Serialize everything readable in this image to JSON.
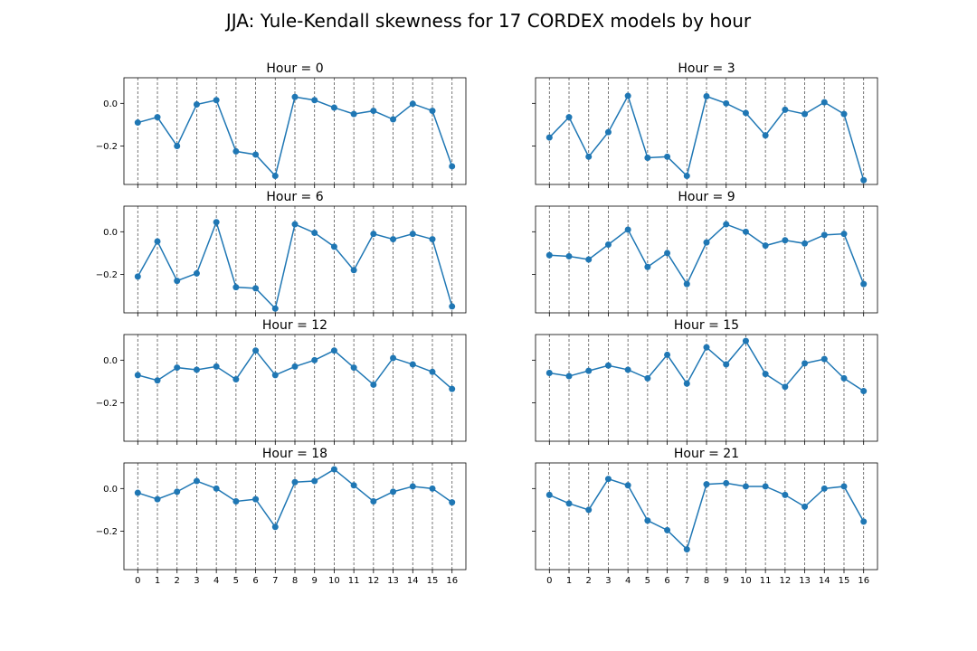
{
  "chart_data": {
    "type": "line",
    "title": "JJA: Yule-Kendall skewness for 17 CORDEX models by hour",
    "x": [
      0,
      1,
      2,
      3,
      4,
      5,
      6,
      7,
      8,
      9,
      10,
      11,
      12,
      13,
      14,
      15,
      16
    ],
    "x_ticks": [
      "0",
      "1",
      "2",
      "3",
      "4",
      "5",
      "6",
      "7",
      "8",
      "9",
      "10",
      "11",
      "12",
      "13",
      "14",
      "15",
      "16"
    ],
    "ylim": [
      -0.38,
      0.12
    ],
    "y_ticks": [
      0.0,
      -0.2
    ],
    "y_tick_labels": [
      "0.0",
      "−0.2"
    ],
    "grid": "vertical dashed lines at each model index",
    "color": "#1f77b4",
    "panels": [
      {
        "title": "Hour = 0",
        "values": [
          -0.09,
          -0.065,
          -0.2,
          -0.005,
          0.015,
          -0.225,
          -0.24,
          -0.34,
          0.03,
          0.015,
          -0.02,
          -0.05,
          -0.035,
          -0.075,
          -0.002,
          -0.035,
          -0.295
        ]
      },
      {
        "title": "Hour = 3",
        "values": [
          -0.16,
          -0.065,
          -0.25,
          -0.135,
          0.035,
          -0.255,
          -0.25,
          -0.34,
          0.033,
          0.0,
          -0.045,
          -0.15,
          -0.03,
          -0.05,
          0.005,
          -0.05,
          -0.36
        ]
      },
      {
        "title": "Hour = 6",
        "values": [
          -0.21,
          -0.045,
          -0.23,
          -0.195,
          0.045,
          -0.26,
          -0.265,
          -0.36,
          0.035,
          -0.005,
          -0.07,
          -0.18,
          -0.01,
          -0.035,
          -0.01,
          -0.035,
          -0.35
        ]
      },
      {
        "title": "Hour = 9",
        "values": [
          -0.11,
          -0.115,
          -0.13,
          -0.06,
          0.01,
          -0.165,
          -0.1,
          -0.245,
          -0.05,
          0.035,
          0.0,
          -0.065,
          -0.04,
          -0.055,
          -0.015,
          -0.01,
          -0.245
        ]
      },
      {
        "title": "Hour = 12",
        "values": [
          -0.07,
          -0.095,
          -0.035,
          -0.045,
          -0.03,
          -0.09,
          0.045,
          -0.07,
          -0.03,
          0.0,
          0.045,
          -0.035,
          -0.115,
          0.01,
          -0.02,
          -0.055,
          -0.135
        ]
      },
      {
        "title": "Hour = 15",
        "values": [
          -0.06,
          -0.075,
          -0.05,
          -0.025,
          -0.045,
          -0.085,
          0.025,
          -0.11,
          0.06,
          -0.02,
          0.09,
          -0.065,
          -0.125,
          -0.015,
          0.005,
          -0.085,
          -0.145
        ]
      },
      {
        "title": "Hour = 18",
        "values": [
          -0.02,
          -0.05,
          -0.015,
          0.035,
          0.0,
          -0.06,
          -0.05,
          -0.18,
          0.03,
          0.035,
          0.09,
          0.015,
          -0.06,
          -0.015,
          0.01,
          0.0,
          -0.065
        ]
      },
      {
        "title": "Hour = 21",
        "values": [
          -0.03,
          -0.07,
          -0.1,
          0.045,
          0.015,
          -0.15,
          -0.195,
          -0.285,
          0.02,
          0.025,
          0.01,
          0.01,
          -0.03,
          -0.085,
          0.0,
          0.01,
          -0.155
        ]
      }
    ]
  }
}
